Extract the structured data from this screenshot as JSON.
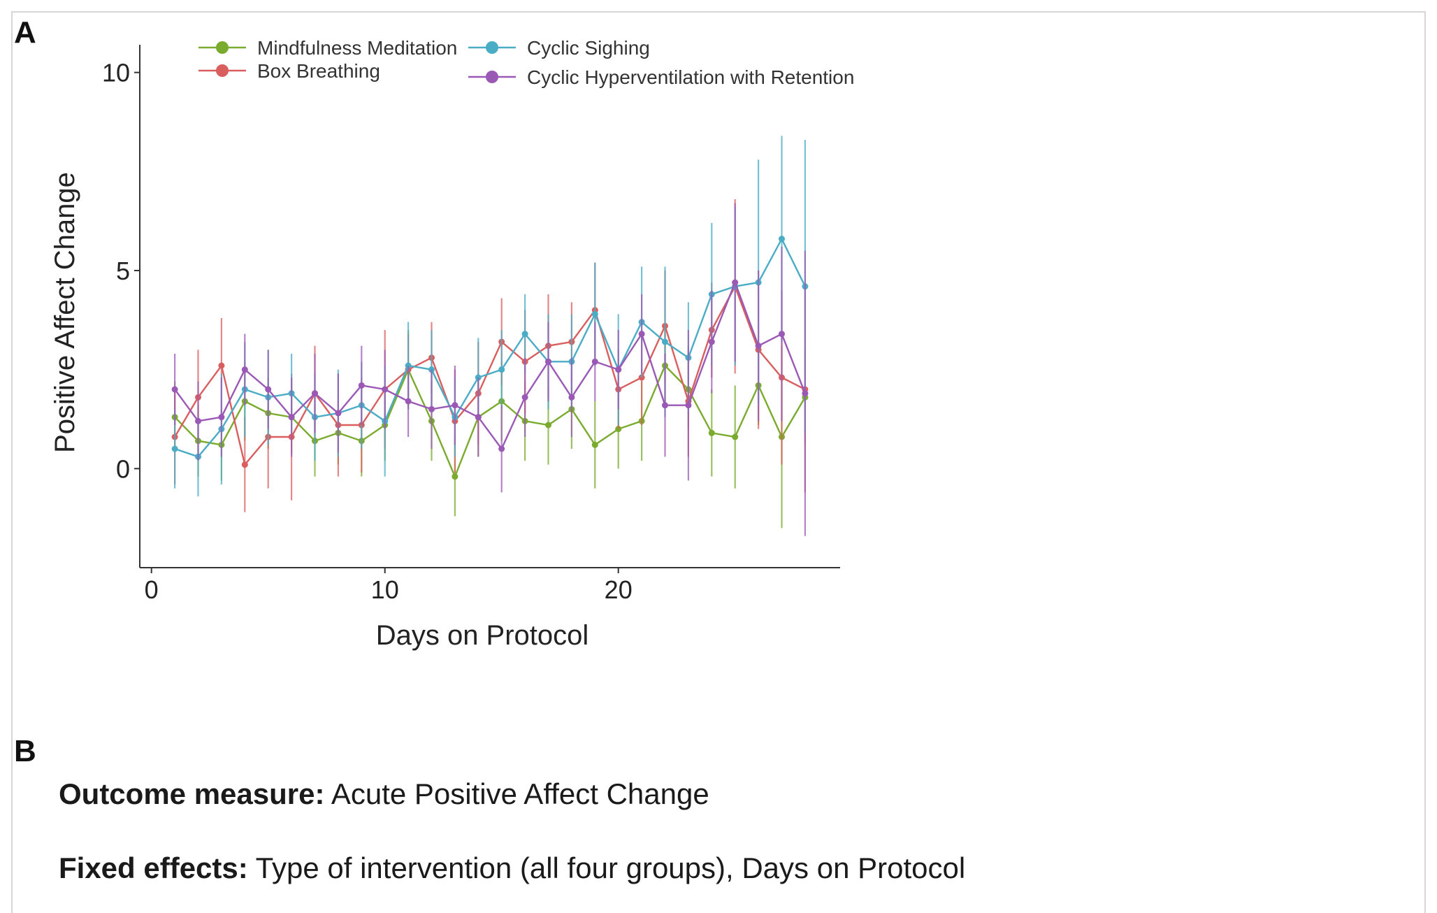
{
  "panel_a_label": "A",
  "panel_b_label": "B",
  "chart_data": {
    "type": "line",
    "title": "",
    "xlabel": "Days on Protocol",
    "ylabel": "Positive Affect Change",
    "xlim": [
      -0.5,
      29.5
    ],
    "ylim": [
      -2.5,
      10.7
    ],
    "x_ticks": [
      0,
      10,
      20
    ],
    "y_ticks": [
      0,
      5,
      10
    ],
    "legend_position": "top-left",
    "x": [
      1,
      2,
      3,
      4,
      5,
      6,
      7,
      8,
      9,
      10,
      11,
      12,
      13,
      14,
      15,
      16,
      17,
      18,
      19,
      20,
      21,
      22,
      23,
      24,
      25,
      26,
      27,
      28
    ],
    "series": [
      {
        "name": "Mindfulness Meditation",
        "color": "#7aab2e",
        "values": [
          1.3,
          0.7,
          0.6,
          1.7,
          1.4,
          1.3,
          0.7,
          0.9,
          0.7,
          1.1,
          2.5,
          1.2,
          -0.2,
          1.3,
          1.7,
          1.2,
          1.1,
          1.5,
          0.6,
          1.0,
          1.2,
          2.6,
          2.0,
          0.9,
          0.8,
          2.1,
          0.8,
          1.8
        ],
        "err": [
          0.9,
          0.9,
          0.9,
          1.0,
          0.9,
          0.9,
          0.9,
          0.8,
          0.9,
          0.9,
          1.0,
          1.0,
          1.0,
          1.0,
          1.0,
          1.0,
          1.0,
          1.0,
          1.1,
          1.0,
          1.0,
          1.0,
          1.0,
          1.1,
          1.3,
          1.0,
          2.3,
          1.2
        ]
      },
      {
        "name": "Box Breathing",
        "color": "#d95f5f",
        "values": [
          0.8,
          1.8,
          2.6,
          0.1,
          0.8,
          0.8,
          1.9,
          1.1,
          1.1,
          2.0,
          2.5,
          2.8,
          1.2,
          1.9,
          3.2,
          2.7,
          3.1,
          3.2,
          4.0,
          2.0,
          2.3,
          3.6,
          1.7,
          3.5,
          4.6,
          3.0,
          2.3,
          2.0
        ],
        "err": [
          1.2,
          1.2,
          1.2,
          1.2,
          1.3,
          1.6,
          1.2,
          1.3,
          1.2,
          1.5,
          0.9,
          0.9,
          1.3,
          1.3,
          1.1,
          1.3,
          1.3,
          1.0,
          1.2,
          1.0,
          1.2,
          1.4,
          1.4,
          1.2,
          2.2,
          2.0,
          2.2,
          2.6
        ]
      },
      {
        "name": "Cyclic Sighing",
        "color": "#4bacc6",
        "values": [
          0.5,
          0.3,
          1.0,
          2.0,
          1.8,
          1.9,
          1.3,
          1.4,
          1.6,
          1.2,
          2.6,
          2.5,
          1.3,
          2.3,
          2.5,
          3.4,
          2.7,
          2.7,
          3.9,
          2.5,
          3.7,
          3.2,
          2.8,
          4.4,
          4.6,
          4.7,
          5.8,
          4.6
        ],
        "err": [
          1.0,
          1.0,
          1.4,
          1.2,
          1.2,
          1.0,
          1.1,
          1.1,
          1.1,
          1.4,
          1.1,
          1.0,
          1.0,
          1.0,
          1.0,
          1.0,
          1.2,
          1.2,
          1.3,
          1.4,
          1.4,
          1.9,
          1.4,
          1.8,
          2.0,
          3.1,
          2.6,
          3.7
        ]
      },
      {
        "name": "Cyclic Hyperventilation with Retention",
        "color": "#9b59b6",
        "values": [
          2.0,
          1.2,
          1.3,
          2.5,
          2.0,
          1.3,
          1.9,
          1.4,
          2.1,
          2.0,
          1.7,
          1.5,
          1.6,
          1.3,
          0.5,
          1.8,
          2.7,
          1.8,
          2.7,
          2.5,
          3.4,
          1.6,
          1.6,
          3.2,
          4.7,
          3.1,
          3.4,
          1.9
        ],
        "err": [
          0.9,
          1.0,
          1.0,
          0.9,
          1.0,
          1.0,
          1.0,
          1.0,
          1.0,
          1.0,
          0.9,
          1.0,
          1.0,
          1.0,
          1.1,
          1.0,
          1.0,
          1.0,
          1.0,
          1.0,
          1.0,
          1.3,
          1.9,
          1.3,
          2.0,
          1.9,
          2.2,
          3.6
        ]
      }
    ]
  },
  "panel_b": {
    "line1_label": "Outcome measure:",
    "line1_text": " Acute Positive Affect Change",
    "line2_label": "Fixed effects:",
    "line2_text": " Type of intervention (all four groups), Days on Protocol"
  }
}
